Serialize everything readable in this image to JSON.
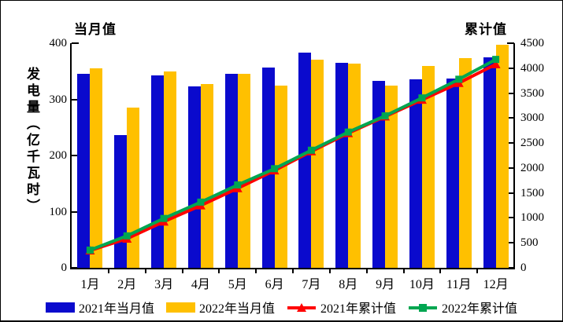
{
  "chart_data": {
    "type": "combo-bar-line",
    "categories": [
      "1月",
      "2月",
      "3月",
      "4月",
      "5月",
      "6月",
      "7月",
      "8月",
      "9月",
      "10月",
      "11月",
      "12月"
    ],
    "series": [
      {
        "name": "2021年当月值",
        "kind": "bar",
        "axis": "left",
        "color": "#0a0acd",
        "values": [
          346,
          237,
          342,
          323,
          345,
          356,
          383,
          365,
          333,
          335,
          337,
          375
        ]
      },
      {
        "name": "2022年当月值",
        "kind": "bar",
        "axis": "left",
        "color": "#ffc000",
        "values": [
          355,
          285,
          349,
          327,
          345,
          325,
          370,
          363,
          325,
          360,
          374,
          397
        ]
      },
      {
        "name": "2021年累计值",
        "kind": "line",
        "axis": "right",
        "color": "#ff0000",
        "marker": "triangle",
        "values": [
          346,
          583,
          925,
          1248,
          1593,
          1949,
          2332,
          2697,
          3030,
          3365,
          3702,
          4077
        ]
      },
      {
        "name": "2022年累计值",
        "kind": "line",
        "axis": "right",
        "color": "#00a651",
        "marker": "square",
        "values": [
          355,
          640,
          989,
          1316,
          1661,
          1986,
          2356,
          2719,
          3044,
          3404,
          3778,
          4175
        ]
      }
    ],
    "left_axis": {
      "title": "当月值",
      "label": "发电量（亿千瓦时）",
      "min": 0,
      "max": 400,
      "step": 100,
      "tick_labels": [
        "0",
        "100",
        "200",
        "300",
        "400"
      ]
    },
    "right_axis": {
      "title": "累计值",
      "min": 0,
      "max": 4500,
      "step": 500,
      "tick_labels": [
        "0",
        "500",
        "1000",
        "1500",
        "2000",
        "2500",
        "3000",
        "3500",
        "4000",
        "4500"
      ]
    },
    "legend_position": "bottom",
    "grid": false,
    "axis_color": "#000000",
    "background": "#ffffff"
  }
}
